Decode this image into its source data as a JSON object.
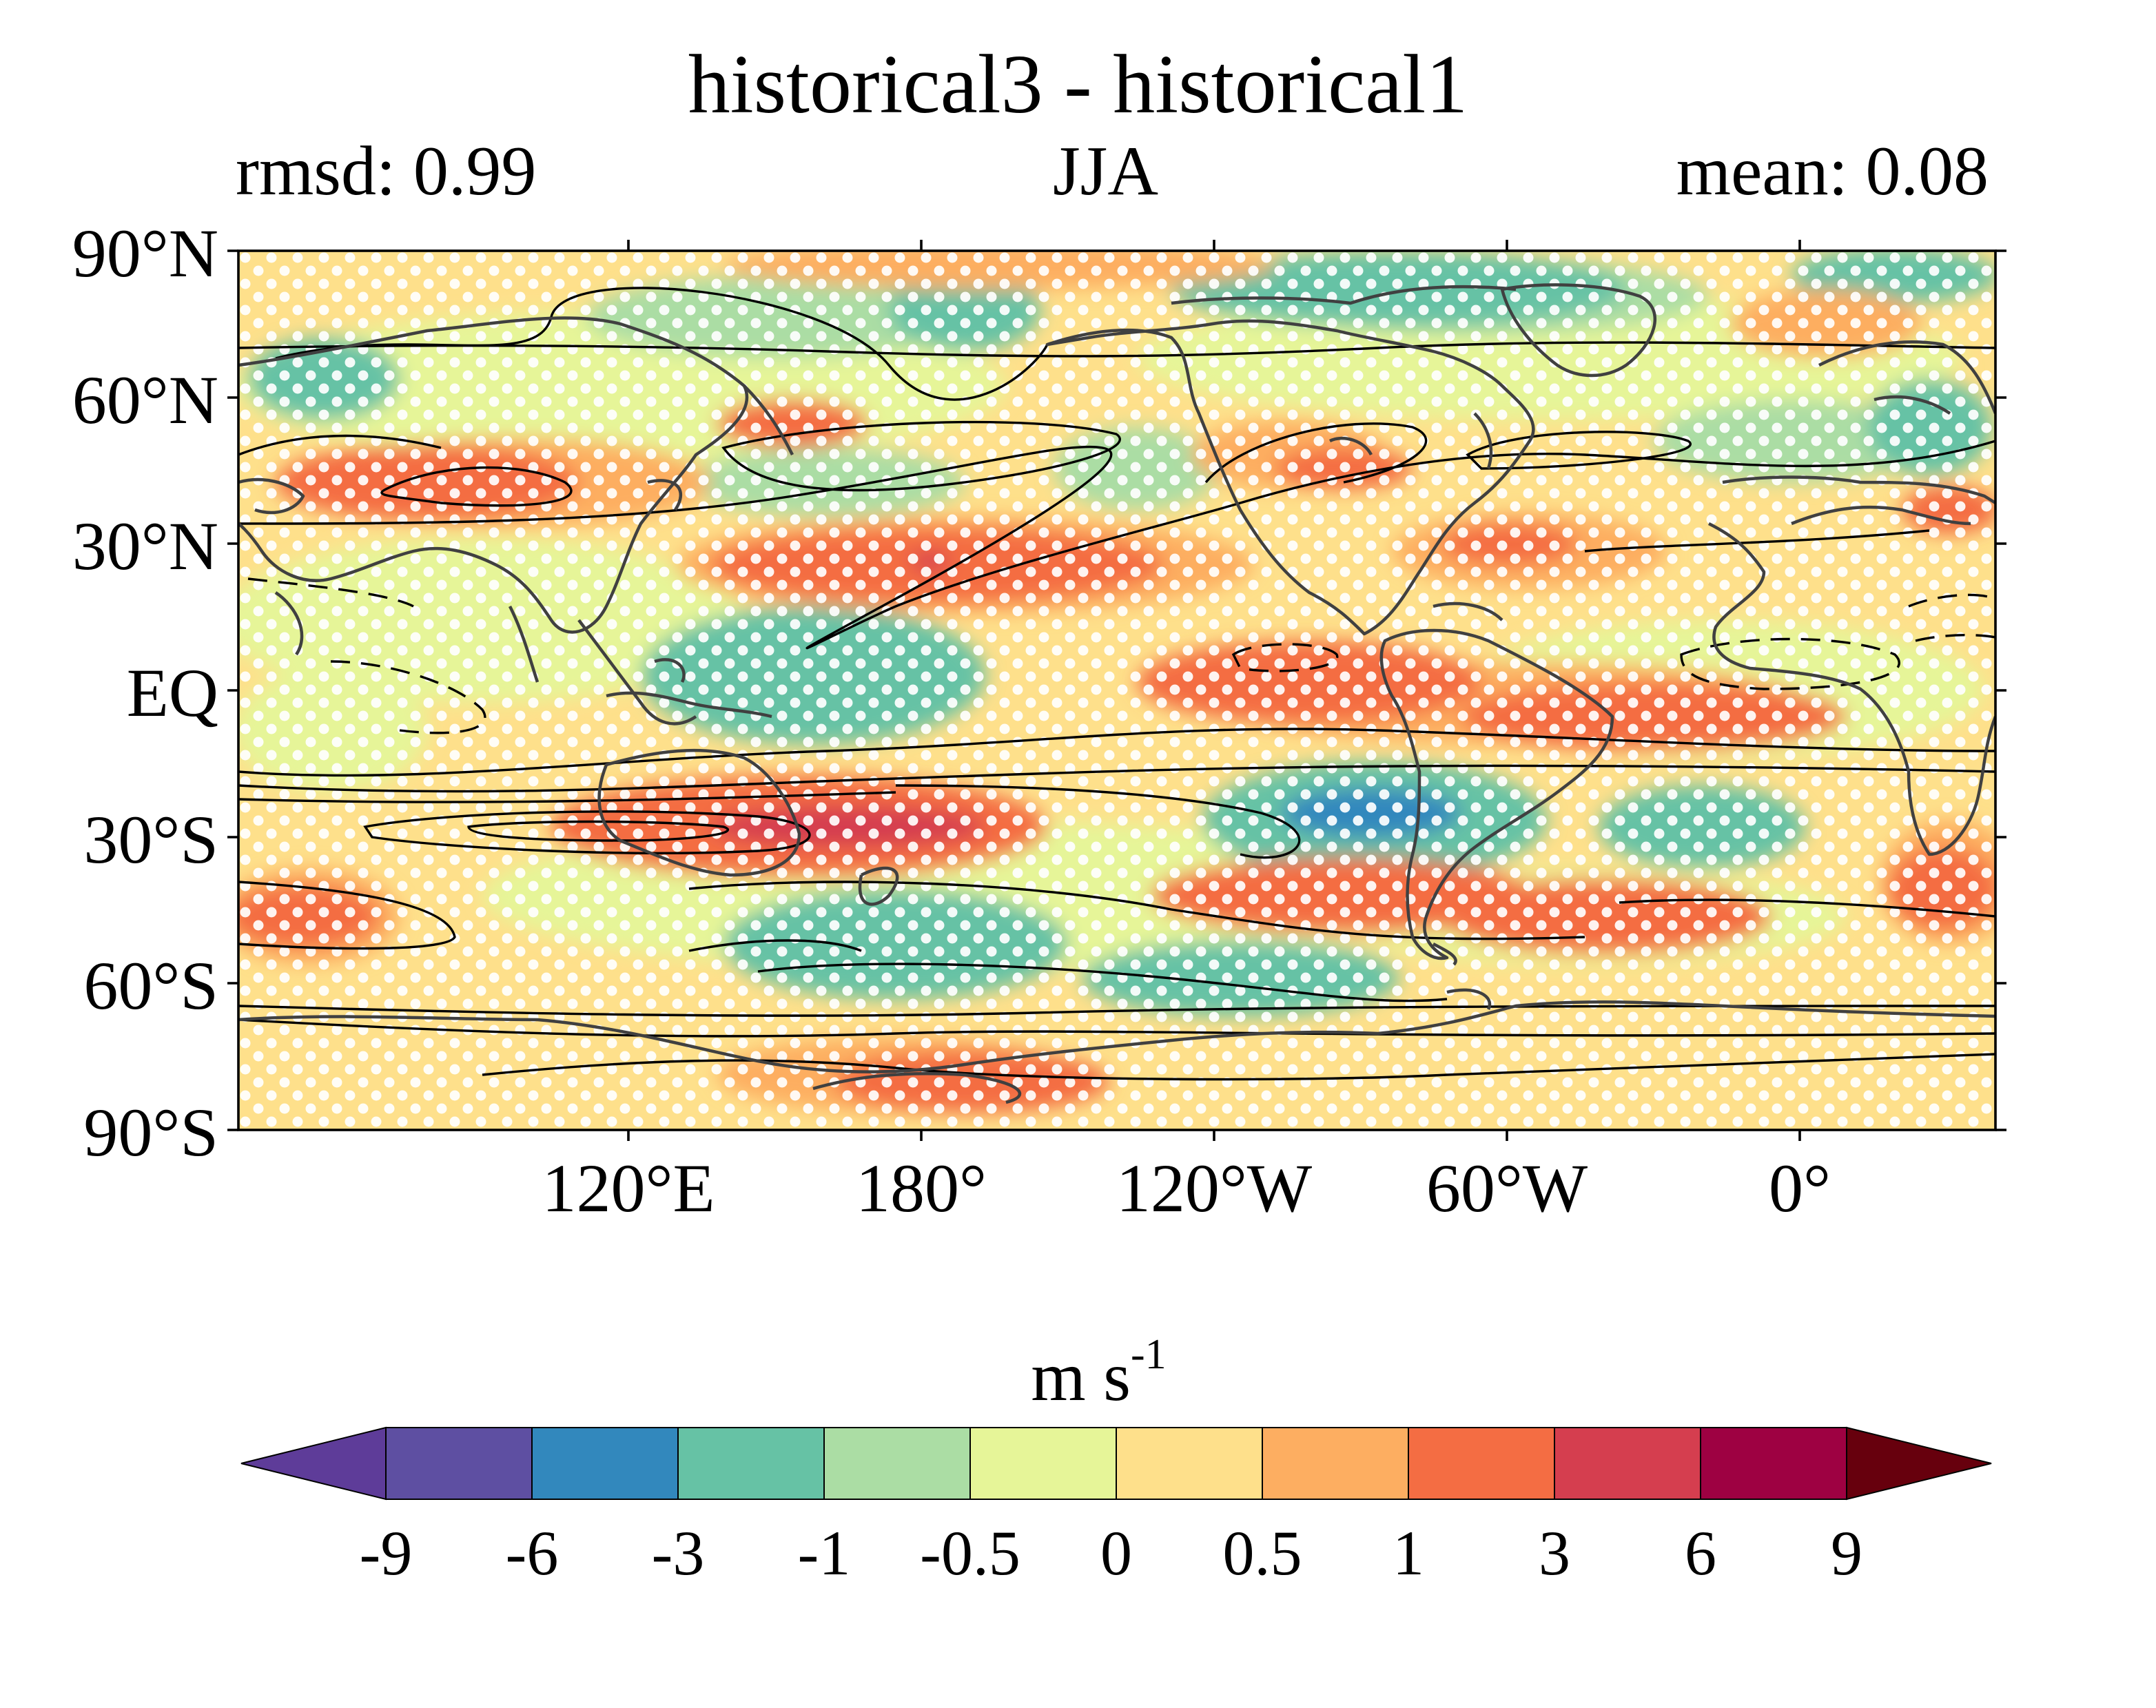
{
  "map": {
    "title": "historical3 - historical1",
    "left_label": "rmsd: 0.99",
    "center_label": "JJA",
    "right_label": "mean: 0.08",
    "lat_labels": [
      "90°N",
      "60°N",
      "30°N",
      "EQ",
      "30°S",
      "60°S",
      "90°S"
    ],
    "lon_labels": [
      "120°E",
      "180°",
      "120°W",
      "60°W",
      "0°"
    ],
    "colorbar": {
      "unit_base": "m s",
      "unit_exp": "-1",
      "tick_labels": [
        "-9",
        "-6",
        "-3",
        "-1",
        "-0.5",
        "0",
        "0.5",
        "1",
        "3",
        "6",
        "9"
      ],
      "colors": [
        "#5e3c99",
        "#5e4fa2",
        "#3288bd",
        "#66c2a5",
        "#abdda4",
        "#e6f598",
        "#fee08b",
        "#fdae61",
        "#f46d43",
        "#d53e4f",
        "#9e0142",
        "#67000d"
      ],
      "extend": "both"
    },
    "colors": {
      "coastline": "#404040",
      "contour": "#000000",
      "stipple": "#ffffff",
      "background": "#ffffff"
    }
  }
}
